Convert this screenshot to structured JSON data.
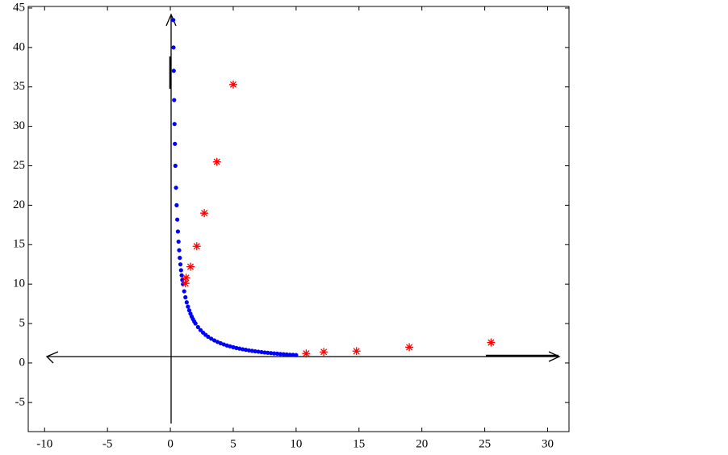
{
  "chart_data": {
    "type": "scatter",
    "xlim": [
      -11.3,
      31.7
    ],
    "ylim": [
      -8.7,
      45.2
    ],
    "xticks": [
      -10,
      -5,
      0,
      5,
      10,
      15,
      20,
      25,
      30
    ],
    "yticks": [
      -5,
      0,
      5,
      10,
      15,
      20,
      25,
      30,
      35,
      40,
      45
    ],
    "series": [
      {
        "color": "#0000ff",
        "marker": "dot",
        "x": [
          0.23,
          0.25,
          0.27,
          0.3,
          0.33,
          0.36,
          0.4,
          0.45,
          0.5,
          0.55,
          0.6,
          0.65,
          0.7,
          0.75,
          0.8,
          0.85,
          0.9,
          0.95,
          1.0,
          1.1,
          1.2,
          1.3,
          1.4,
          1.5,
          1.6,
          1.7,
          1.8,
          1.9,
          2.0,
          2.2,
          2.4,
          2.6,
          2.8,
          3.0,
          3.25,
          3.5,
          3.75,
          4.0,
          4.25,
          4.5,
          4.75,
          5.0,
          5.25,
          5.5,
          5.75,
          6.0,
          6.25,
          6.5,
          6.75,
          7.0,
          7.25,
          7.5,
          7.75,
          8.0,
          8.25,
          8.5,
          8.75,
          9.0,
          9.25,
          9.5,
          9.75,
          10.0
        ],
        "values": [
          43.48,
          40,
          37.04,
          33.33,
          30.3,
          27.78,
          25,
          22.22,
          20,
          18.18,
          16.67,
          15.38,
          14.29,
          13.33,
          12.5,
          11.76,
          11.11,
          10.53,
          10,
          9.09,
          8.33,
          7.69,
          7.14,
          6.67,
          6.25,
          5.88,
          5.56,
          5.26,
          5,
          4.55,
          4.17,
          3.85,
          3.57,
          3.33,
          3.08,
          2.86,
          2.67,
          2.5,
          2.35,
          2.22,
          2.11,
          2,
          1.9,
          1.82,
          1.74,
          1.67,
          1.6,
          1.54,
          1.48,
          1.43,
          1.38,
          1.33,
          1.29,
          1.25,
          1.21,
          1.18,
          1.14,
          1.11,
          1.08,
          1.05,
          1.03,
          1
        ]
      },
      {
        "color": "#ff0000",
        "marker": "star",
        "x": [
          10.8,
          12.2,
          14.8,
          19,
          25.5,
          1.2,
          1.25,
          1.6,
          2.1,
          2.7,
          3.7,
          5
        ],
        "values": [
          1.2,
          1.4,
          1.5,
          2,
          2.6,
          10.1,
          10.8,
          12.2,
          14.8,
          19,
          25.5,
          35.3
        ]
      }
    ]
  }
}
